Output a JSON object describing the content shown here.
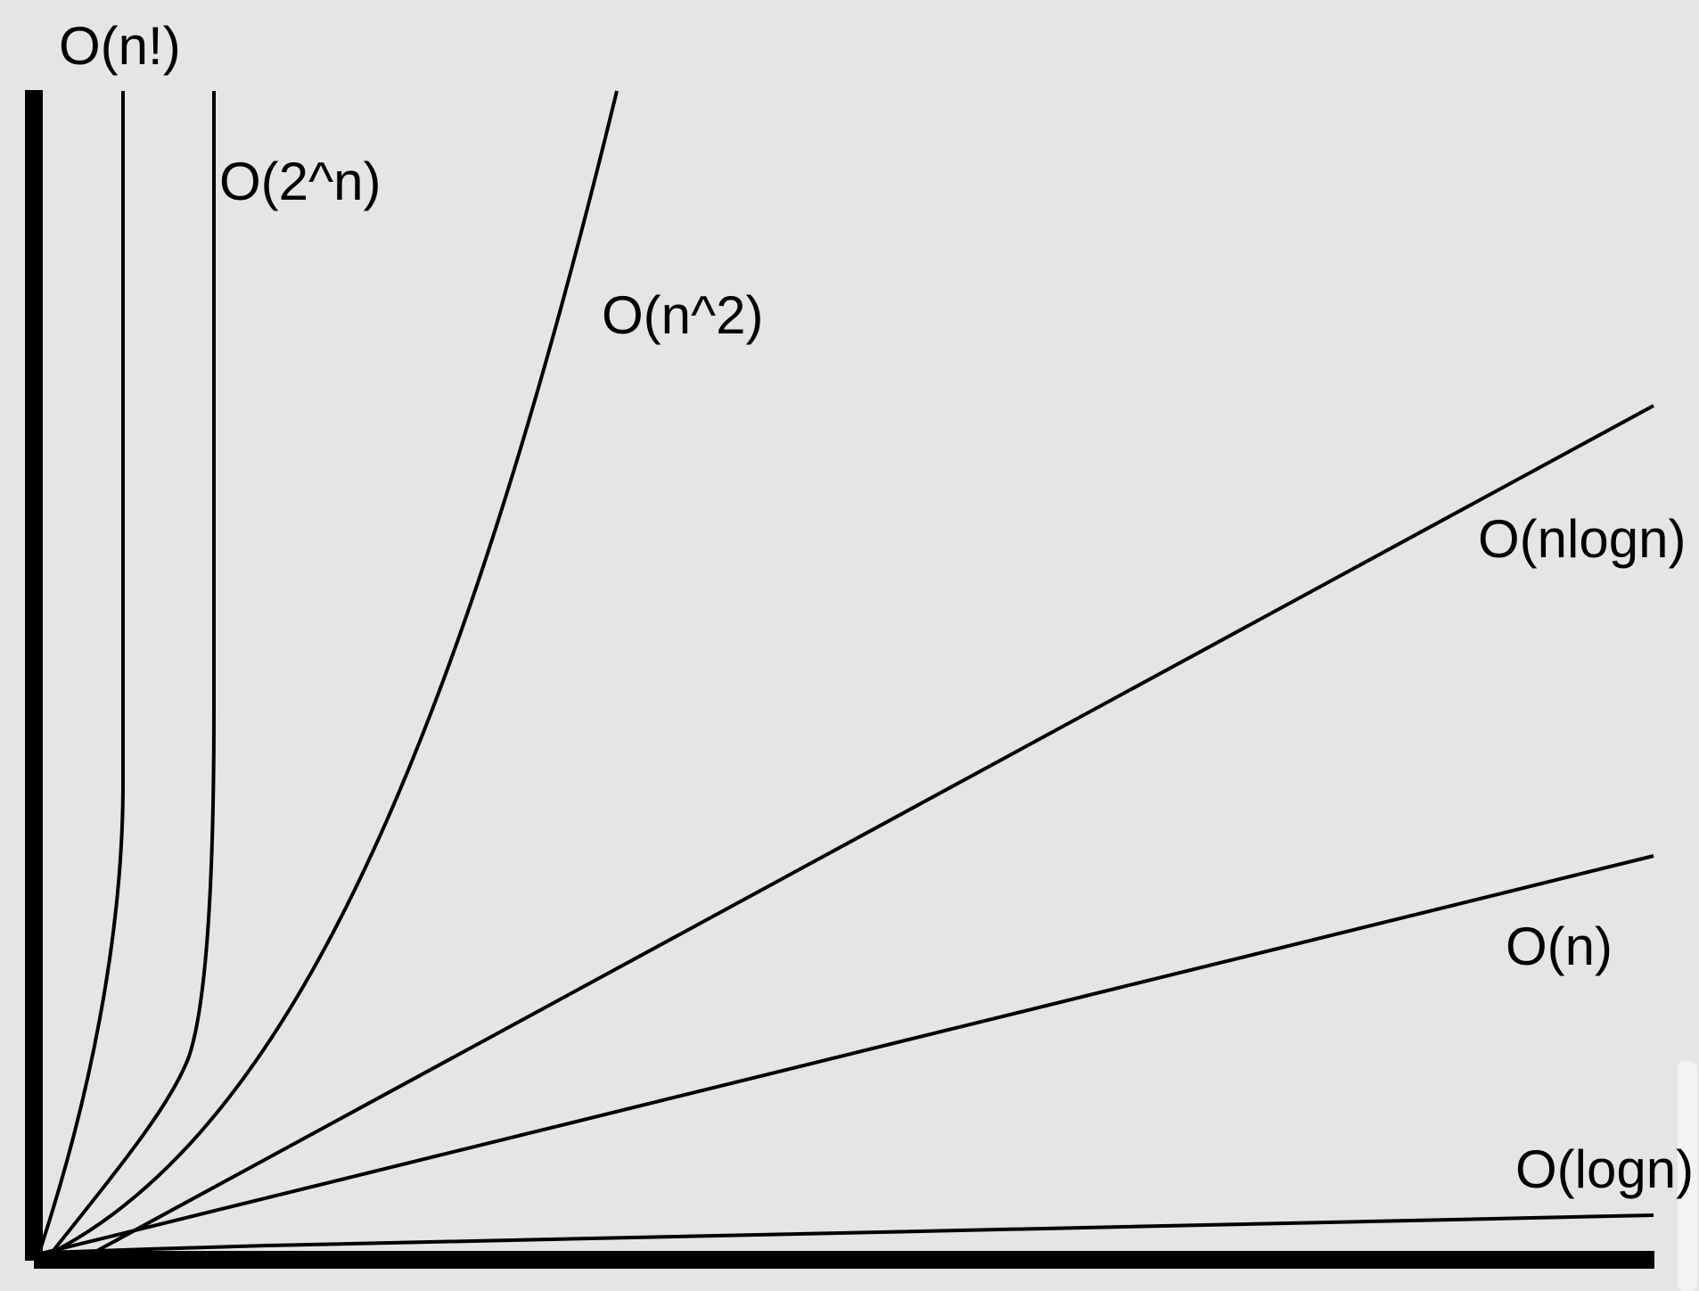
{
  "diagram": {
    "curves": [
      {
        "id": "factorial",
        "label": "O(n!)"
      },
      {
        "id": "exponential",
        "label": "O(2^n)"
      },
      {
        "id": "quadratic",
        "label": "O(n^2)"
      },
      {
        "id": "linearithmic",
        "label": "O(nlogn)"
      },
      {
        "id": "linear",
        "label": "O(n)"
      },
      {
        "id": "logarithmic",
        "label": "O(logn)"
      }
    ]
  }
}
